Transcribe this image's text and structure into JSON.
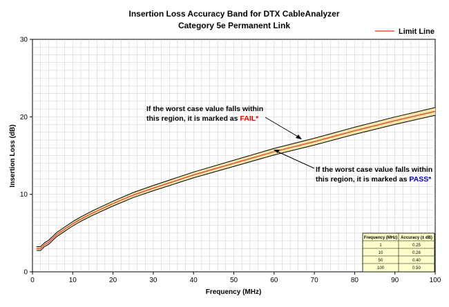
{
  "chart_data": {
    "type": "line",
    "title": [
      "Insertion Loss Accuracy Band for DTX CableAnalyzer",
      "Category 5e Permanent Link"
    ],
    "xlabel": "Frequency (MHz)",
    "ylabel": "Insertion Loss (dB)",
    "xlim": [
      0,
      100
    ],
    "ylim": [
      0,
      30
    ],
    "x_ticks": [
      0,
      10,
      20,
      30,
      40,
      50,
      60,
      70,
      80,
      90,
      100
    ],
    "y_ticks": [
      0,
      10,
      20,
      30
    ],
    "grid": true,
    "legend": {
      "position": "top-right",
      "entries": [
        "Limit Line"
      ]
    },
    "colors": {
      "limit": "#e8463c",
      "band_edge": "#000000",
      "band_fill": "#f2e6a6",
      "table_fill": "#ffffcc"
    },
    "series": [
      {
        "name": "Limit Line",
        "x": [
          1,
          2,
          3,
          4,
          5,
          6,
          8,
          10,
          12,
          15,
          20,
          25,
          30,
          40,
          50,
          60,
          70,
          80,
          90,
          100
        ],
        "values": [
          3,
          3,
          3.5,
          3.8,
          4.3,
          4.8,
          5.5,
          6.2,
          6.8,
          7.6,
          8.8,
          9.9,
          10.8,
          12.5,
          14.0,
          15.5,
          16.8,
          18.2,
          19.5,
          20.7
        ]
      }
    ],
    "accuracy_table": {
      "headers": [
        "Frequency (MHz)",
        "Accuracy (± dB)"
      ],
      "rows": [
        [
          "1",
          "0.25"
        ],
        [
          "10",
          "0.28"
        ],
        [
          "50",
          "0.40"
        ],
        [
          "100",
          "0.50"
        ]
      ],
      "freq": [
        1,
        10,
        50,
        100
      ],
      "acc": [
        0.25,
        0.28,
        0.4,
        0.5
      ]
    },
    "annotations": [
      {
        "lines": [
          "If the worst case value falls within",
          "this region, it is marked as "
        ],
        "highlight": "FAIL*",
        "highlight_color": "#ff0000"
      },
      {
        "lines": [
          "If the worst case value falls within",
          "this region, it is marked as "
        ],
        "highlight": "PASS*",
        "highlight_color": "#0000cc"
      }
    ]
  }
}
